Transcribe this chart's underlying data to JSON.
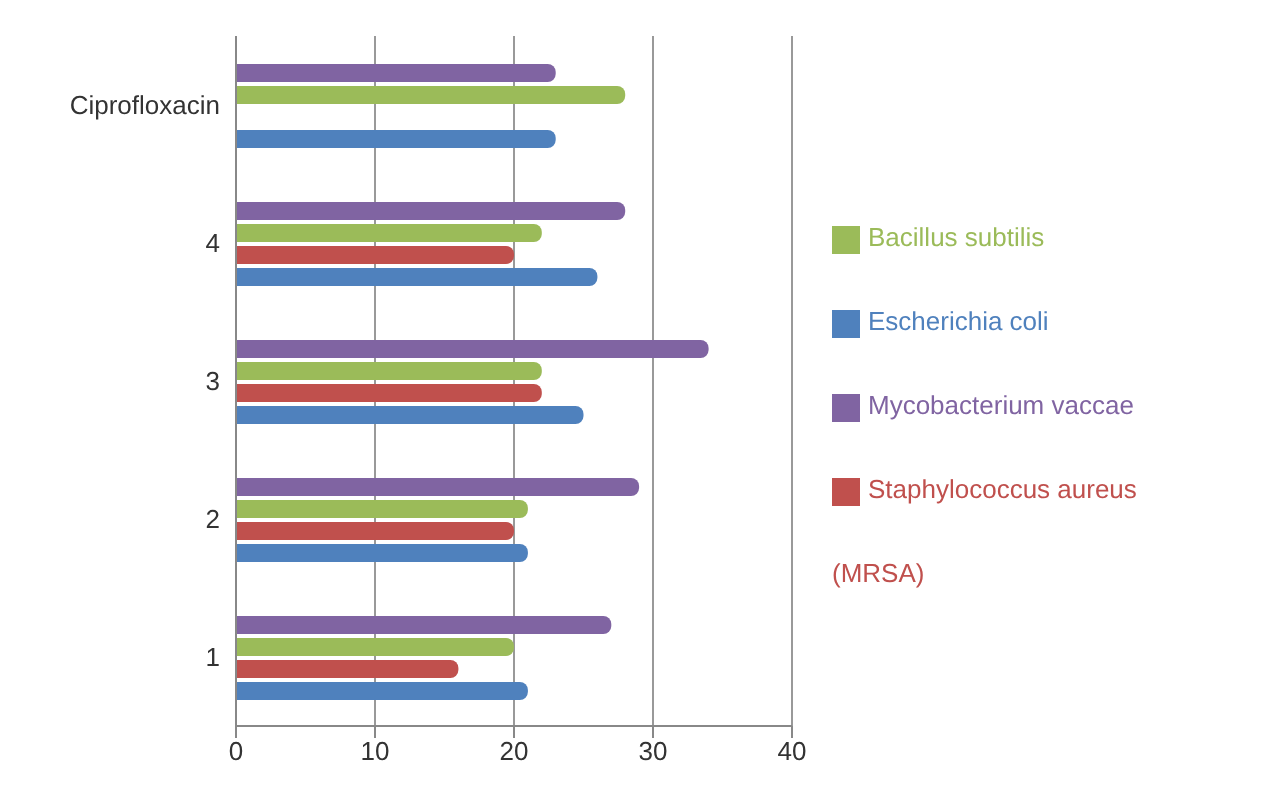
{
  "chart_data": {
    "type": "bar",
    "orientation": "horizontal",
    "categories": [
      "Ciprofloxacin",
      "4",
      "3",
      "2",
      "1"
    ],
    "series": [
      {
        "name": "Mycobacterium vaccae",
        "color": "#8064a2",
        "values": [
          23,
          28,
          34,
          29,
          27
        ]
      },
      {
        "name": "Bacillus subtilis",
        "color": "#9bbb59",
        "values": [
          28,
          22,
          22,
          21,
          20
        ]
      },
      {
        "name": "Staphylococcus aureus (MRSA)",
        "color": "#c0504d",
        "values": [
          0,
          20,
          22,
          20,
          16
        ]
      },
      {
        "name": "Escherichia coli",
        "color": "#4f81bd",
        "values": [
          23,
          26,
          25,
          21,
          21
        ]
      }
    ],
    "xlim": [
      0,
      40
    ],
    "xticks": [
      0,
      10,
      20,
      30,
      40
    ],
    "grid": "x",
    "legend": "right"
  }
}
